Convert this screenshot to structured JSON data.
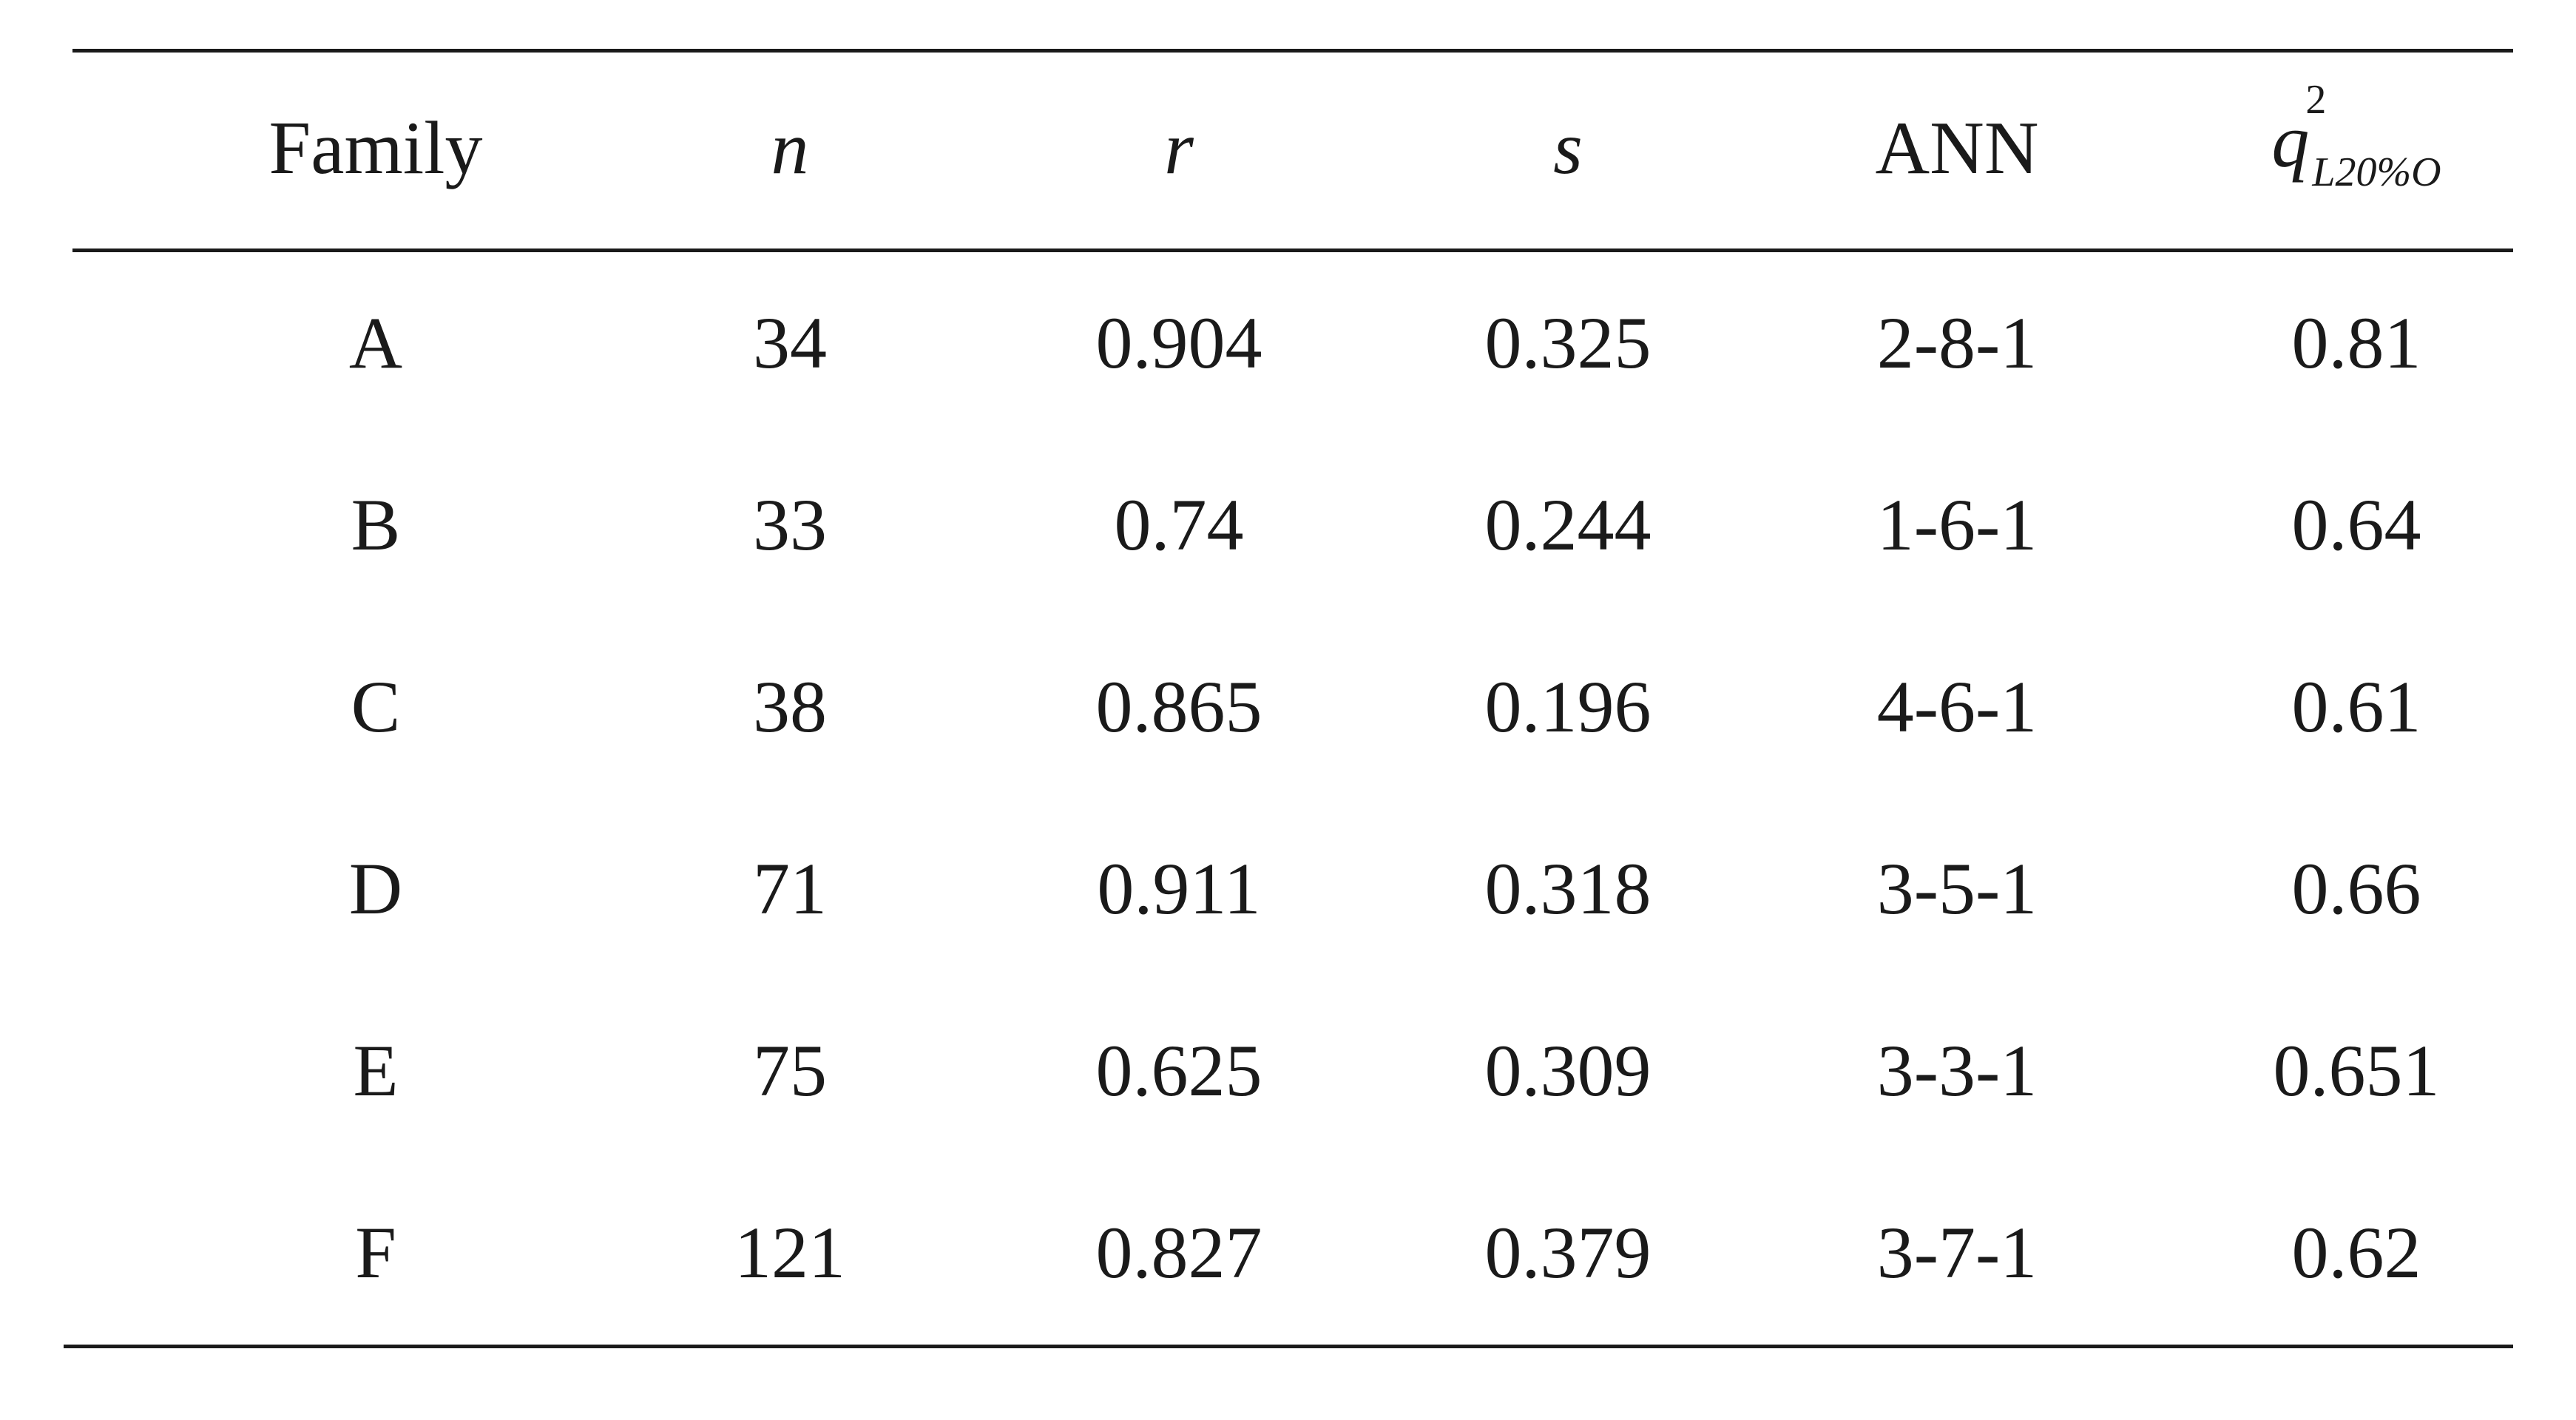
{
  "table": {
    "headers": {
      "family": "Family",
      "n": "n",
      "r": "r",
      "s": "s",
      "ann": "ANN",
      "q_base": "q",
      "q_sup": "2",
      "q_sub": "L20%O"
    },
    "rows": [
      {
        "family": "A",
        "n": "34",
        "r": "0.904",
        "s": "0.325",
        "ann": "2-8-1",
        "q": "0.81"
      },
      {
        "family": "B",
        "n": "33",
        "r": "0.74",
        "s": "0.244",
        "ann": "1-6-1",
        "q": "0.64"
      },
      {
        "family": "C",
        "n": "38",
        "r": "0.865",
        "s": "0.196",
        "ann": "4-6-1",
        "q": "0.61"
      },
      {
        "family": "D",
        "n": "71",
        "r": "0.911",
        "s": "0.318",
        "ann": "3-5-1",
        "q": "0.66"
      },
      {
        "family": "E",
        "n": "75",
        "r": "0.625",
        "s": "0.309",
        "ann": "3-3-1",
        "q": "0.651"
      },
      {
        "family": "F",
        "n": "121",
        "r": "0.827",
        "s": "0.379",
        "ann": "3-7-1",
        "q": "0.62"
      }
    ]
  }
}
